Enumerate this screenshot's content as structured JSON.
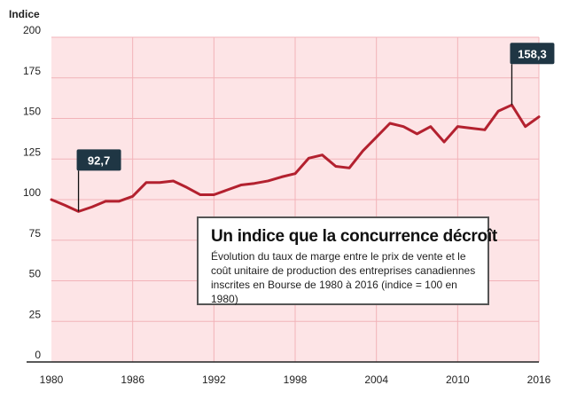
{
  "chart_data": {
    "type": "line",
    "ylabel": "Indice",
    "xlim": [
      1980,
      2016
    ],
    "ylim": [
      0,
      200
    ],
    "x_ticks": [
      "1980",
      "1986",
      "1992",
      "1998",
      "2004",
      "2010",
      "2016"
    ],
    "y_ticks": [
      "0",
      "25",
      "50",
      "75",
      "100",
      "125",
      "150",
      "175",
      "200"
    ],
    "grid": true,
    "x": [
      1980,
      1981,
      1982,
      1983,
      1984,
      1985,
      1986,
      1987,
      1988,
      1989,
      1990,
      1991,
      1992,
      1993,
      1994,
      1995,
      1996,
      1997,
      1998,
      1999,
      2000,
      2001,
      2002,
      2003,
      2004,
      2005,
      2006,
      2007,
      2008,
      2009,
      2010,
      2011,
      2012,
      2013,
      2014,
      2015,
      2016
    ],
    "series": [
      {
        "values": [
          100,
          96.5,
          92.7,
          95.5,
          99,
          99,
          102,
          110.5,
          110.5,
          111.5,
          107.5,
          103,
          103,
          106,
          109,
          110,
          111.5,
          114,
          116,
          125.5,
          127.5,
          120.5,
          119.5,
          130,
          138.5,
          147,
          145,
          140.5,
          145,
          135.5,
          145,
          144,
          143,
          154.5,
          158.3,
          145,
          151
        ]
      }
    ],
    "annotations": [
      {
        "x": 1982,
        "y": 92.7,
        "label": "92,7"
      },
      {
        "x": 2014,
        "y": 158.3,
        "label": "158,3"
      }
    ],
    "legend_box": {
      "title": "Un indice que la concurrence décroît",
      "subtitle": "Évolution du taux de marge entre le prix de vente et le coût unitaire de production des entreprises canadiennes inscrites en Bourse de 1980 à 2016 (indice = 100 en 1980)"
    },
    "colors": {
      "plot_background": "#fde4e6",
      "gridline": "#f2b3b9",
      "line": "#b3212f",
      "callout_fill": "#1f3644",
      "callout_text": "#ffffff",
      "axis": "#222222"
    }
  }
}
